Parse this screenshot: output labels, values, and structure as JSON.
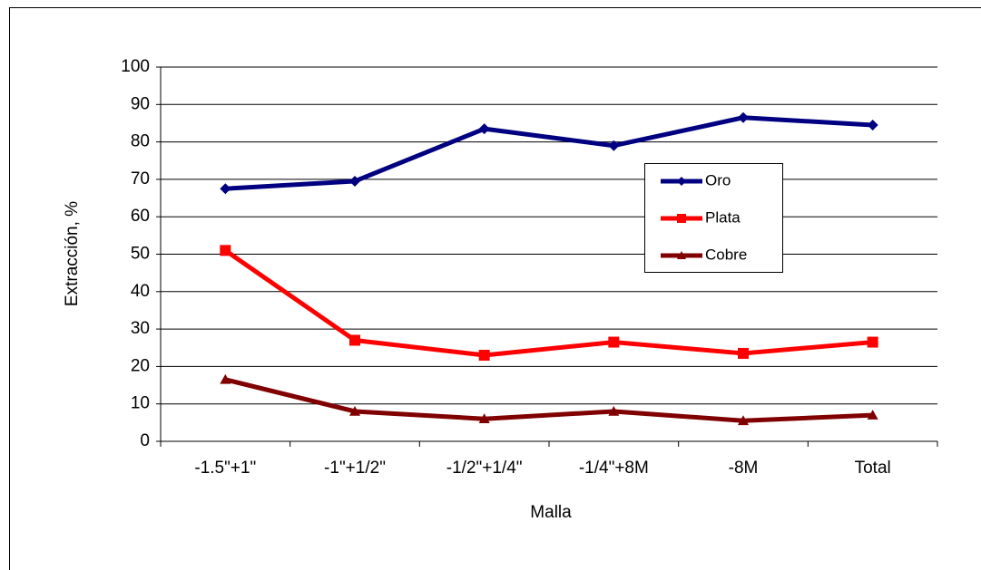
{
  "chart_data": {
    "type": "line",
    "x_label": "Malla",
    "y_label": "Extracción, %",
    "categories": [
      "-1.5\"+1\"",
      "-1\"+1/2\"",
      "-1/2\"+1/4\"",
      "-1/4\"+8M",
      "-8M",
      "Total"
    ],
    "series": [
      {
        "name": "Oro",
        "color": "#000080",
        "marker": "diamond",
        "values": [
          67.5,
          69.5,
          83.5,
          79,
          86.5,
          84.5
        ]
      },
      {
        "name": "Plata",
        "color": "#ff0000",
        "marker": "square",
        "values": [
          51,
          27,
          23,
          26.5,
          23.5,
          26.5
        ]
      },
      {
        "name": "Cobre",
        "color": "#800000",
        "marker": "triangle",
        "values": [
          16.5,
          8,
          6,
          8,
          5.5,
          7
        ]
      }
    ],
    "ylim": [
      0,
      100
    ],
    "yticks": [
      0,
      10,
      20,
      30,
      40,
      50,
      60,
      70,
      80,
      90,
      100
    ],
    "grid": true
  }
}
